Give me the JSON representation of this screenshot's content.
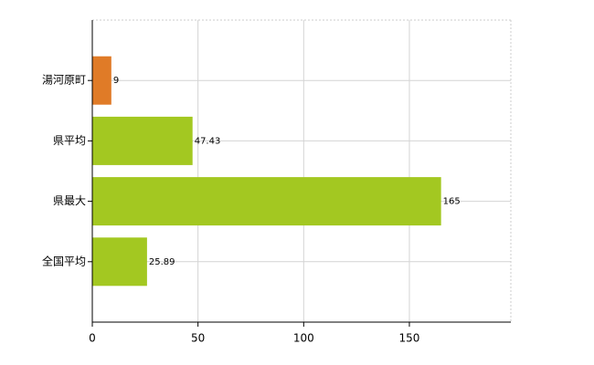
{
  "chart_data": {
    "type": "bar",
    "orientation": "horizontal",
    "categories": [
      "湯河原町",
      "県平均",
      "県最大",
      "全国平均"
    ],
    "values": [
      9,
      47.43,
      165,
      25.89
    ],
    "colors": [
      "#e07b27",
      "#a3c821",
      "#a3c821",
      "#a3c821"
    ],
    "xlim": [
      0,
      198
    ],
    "xticks": [
      0,
      50,
      100,
      150
    ],
    "grid": true
  }
}
